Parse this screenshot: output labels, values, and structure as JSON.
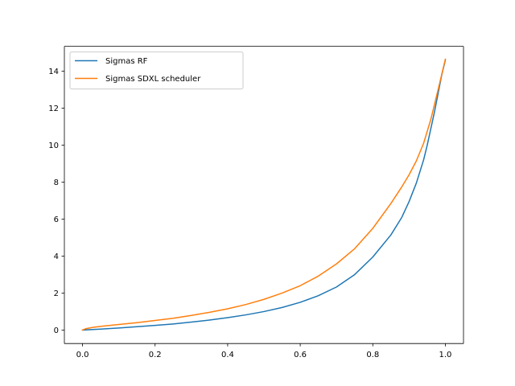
{
  "chart_data": {
    "type": "line",
    "title": "",
    "xlabel": "",
    "ylabel": "",
    "xlim": [
      -0.05,
      1.05
    ],
    "ylim": [
      -0.73,
      15.35
    ],
    "xticks": [
      0.0,
      0.2,
      0.4,
      0.6,
      0.8,
      1.0
    ],
    "xtick_labels": [
      "0.0",
      "0.2",
      "0.4",
      "0.6",
      "0.8",
      "1.0"
    ],
    "yticks": [
      0,
      2,
      4,
      6,
      8,
      10,
      12,
      14
    ],
    "ytick_labels": [
      "0",
      "2",
      "4",
      "6",
      "8",
      "10",
      "12",
      "14"
    ],
    "grid": false,
    "legend_position": "top-left",
    "series": [
      {
        "name": "Sigmas RF",
        "color": "#1f77b4",
        "x": [
          0.0,
          0.05,
          0.1,
          0.15,
          0.2,
          0.25,
          0.3,
          0.35,
          0.4,
          0.45,
          0.5,
          0.55,
          0.6,
          0.65,
          0.7,
          0.75,
          0.8,
          0.85,
          0.88,
          0.9,
          0.92,
          0.94,
          0.95,
          0.96,
          0.97,
          0.98,
          0.99,
          1.0
        ],
        "values": [
          0.0,
          0.05,
          0.11,
          0.18,
          0.25,
          0.33,
          0.43,
          0.54,
          0.67,
          0.82,
          1.0,
          1.22,
          1.5,
          1.86,
          2.33,
          3.0,
          3.95,
          5.15,
          6.1,
          6.95,
          7.95,
          9.2,
          10.0,
          10.9,
          11.8,
          12.8,
          13.8,
          14.6
        ]
      },
      {
        "name": "Sigmas SDXL scheduler",
        "color": "#ff7f0e",
        "x": [
          0.0,
          0.01,
          0.03,
          0.05,
          0.1,
          0.15,
          0.2,
          0.25,
          0.3,
          0.35,
          0.4,
          0.45,
          0.5,
          0.55,
          0.6,
          0.65,
          0.7,
          0.75,
          0.8,
          0.85,
          0.88,
          0.9,
          0.92,
          0.94,
          0.96,
          0.98,
          1.0
        ],
        "values": [
          0.0,
          0.08,
          0.15,
          0.2,
          0.3,
          0.4,
          0.52,
          0.64,
          0.79,
          0.96,
          1.15,
          1.38,
          1.66,
          2.0,
          2.4,
          2.92,
          3.58,
          4.4,
          5.5,
          6.85,
          7.75,
          8.4,
          9.15,
          10.1,
          11.4,
          13.0,
          14.65
        ]
      }
    ]
  }
}
